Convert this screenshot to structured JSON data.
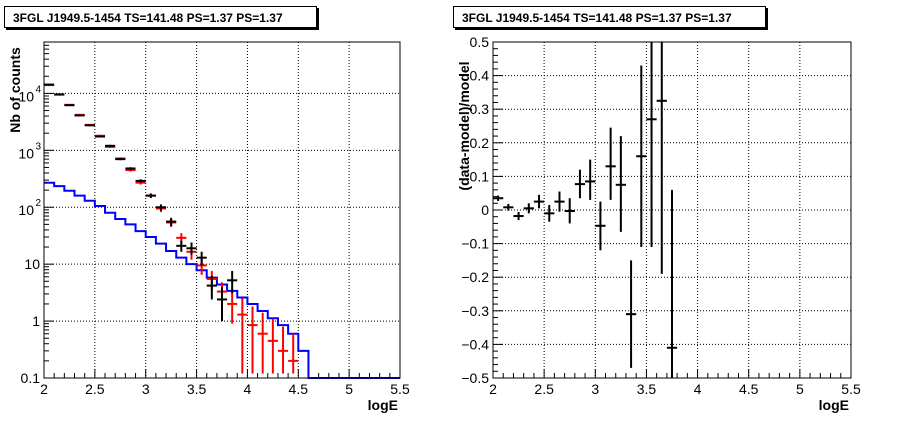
{
  "chart_data": [
    {
      "type": "histogram",
      "title": "3FGL J1949.5-1454 TS=141.48 PS=1.37 PS=1.37",
      "xlabel": "logE",
      "ylabel": "Nb of counts",
      "xlim": [
        2,
        5.5
      ],
      "ylim": [
        0.1,
        80000
      ],
      "yscale": "log",
      "grid": true,
      "x_ticks": [
        "2",
        "2.5",
        "3",
        "3.5",
        "4",
        "4.5",
        "5",
        "5.5"
      ],
      "y_ticks": [
        {
          "label": "1",
          "value": 1
        },
        {
          "label": "10",
          "value": 10
        },
        {
          "label": "0.1",
          "value": 0.1
        }
      ],
      "y_ticks_pow": [
        {
          "base": "10",
          "exp": "2",
          "value": 100
        },
        {
          "base": "10",
          "exp": "3",
          "value": 1000
        },
        {
          "base": "10",
          "exp": "4",
          "value": 10000
        }
      ],
      "series": [
        {
          "color": "#0000ff",
          "style": "step",
          "x_edges": [
            2.0,
            2.1,
            2.2,
            2.3,
            2.4,
            2.5,
            2.6,
            2.7,
            2.8,
            2.9,
            3.0,
            3.1,
            3.2,
            3.3,
            3.4,
            3.5,
            3.6,
            3.7,
            3.8,
            3.9,
            4.0,
            4.1,
            4.2,
            4.3,
            4.4,
            4.5,
            4.6,
            4.7,
            4.8,
            4.9,
            5.0,
            5.1,
            5.2,
            5.3,
            5.4,
            5.5
          ],
          "values": [
            270,
            235,
            195,
            160,
            130,
            105,
            80,
            62,
            50,
            38,
            30,
            23,
            17,
            13,
            10,
            7.8,
            5.8,
            4.4,
            3.4,
            2.6,
            2.0,
            1.5,
            1.12,
            0.85,
            0.6,
            0.3,
            0.1,
            0.1,
            0.1,
            0.1,
            0.1,
            0.1,
            0.1,
            0.1,
            0.1
          ]
        },
        {
          "color": "#ff0000",
          "style": "error",
          "points": [
            {
              "x": 2.05,
              "y": 14000,
              "ylo": 13600,
              "yhi": 14400
            },
            {
              "x": 2.15,
              "y": 9500,
              "ylo": 9250,
              "yhi": 9750
            },
            {
              "x": 2.25,
              "y": 6300,
              "ylo": 6100,
              "yhi": 6500
            },
            {
              "x": 2.35,
              "y": 4200,
              "ylo": 4060,
              "yhi": 4340
            },
            {
              "x": 2.45,
              "y": 2800,
              "ylo": 2700,
              "yhi": 2900
            },
            {
              "x": 2.55,
              "y": 1800,
              "ylo": 1730,
              "yhi": 1870
            },
            {
              "x": 2.65,
              "y": 1150,
              "ylo": 1100,
              "yhi": 1200
            },
            {
              "x": 2.75,
              "y": 720,
              "ylo": 690,
              "yhi": 750
            },
            {
              "x": 2.85,
              "y": 450,
              "ylo": 425,
              "yhi": 475
            },
            {
              "x": 2.95,
              "y": 270,
              "ylo": 250,
              "yhi": 290
            },
            {
              "x": 3.05,
              "y": 160,
              "ylo": 145,
              "yhi": 175
            },
            {
              "x": 3.15,
              "y": 95,
              "ylo": 82,
              "yhi": 108
            },
            {
              "x": 3.25,
              "y": 54,
              "ylo": 45,
              "yhi": 63
            },
            {
              "x": 3.35,
              "y": 29,
              "ylo": 23,
              "yhi": 35
            },
            {
              "x": 3.45,
              "y": 16.5,
              "ylo": 12,
              "yhi": 21
            },
            {
              "x": 3.55,
              "y": 9.5,
              "ylo": 6.5,
              "yhi": 12.5
            },
            {
              "x": 3.65,
              "y": 5.5,
              "ylo": 3.5,
              "yhi": 7.6
            },
            {
              "x": 3.75,
              "y": 3.3,
              "ylo": 1.8,
              "yhi": 4.8
            },
            {
              "x": 3.85,
              "y": 2.0,
              "ylo": 0.9,
              "yhi": 3.2
            },
            {
              "x": 3.95,
              "y": 1.3,
              "ylo": 0.12,
              "yhi": 2.5
            },
            {
              "x": 4.05,
              "y": 0.85,
              "ylo": 0.12,
              "yhi": 1.8
            },
            {
              "x": 4.15,
              "y": 0.6,
              "ylo": 0.12,
              "yhi": 1.4
            },
            {
              "x": 4.25,
              "y": 0.45,
              "ylo": 0.12,
              "yhi": 1.1
            },
            {
              "x": 4.35,
              "y": 0.3,
              "ylo": 0.12,
              "yhi": 0.8
            },
            {
              "x": 4.45,
              "y": 0.2,
              "ylo": 0.12,
              "yhi": 0.6
            }
          ]
        },
        {
          "color": "#000000",
          "style": "error",
          "points": [
            {
              "x": 2.05,
              "y": 14300,
              "ylo": 13900,
              "yhi": 14700
            },
            {
              "x": 2.15,
              "y": 9600,
              "ylo": 9350,
              "yhi": 9850
            },
            {
              "x": 2.25,
              "y": 6200,
              "ylo": 6000,
              "yhi": 6400
            },
            {
              "x": 2.35,
              "y": 4100,
              "ylo": 3970,
              "yhi": 4230
            },
            {
              "x": 2.45,
              "y": 2750,
              "ylo": 2650,
              "yhi": 2850
            },
            {
              "x": 2.55,
              "y": 1750,
              "ylo": 1680,
              "yhi": 1820
            },
            {
              "x": 2.65,
              "y": 1200,
              "ylo": 1150,
              "yhi": 1250
            },
            {
              "x": 2.75,
              "y": 700,
              "ylo": 670,
              "yhi": 730
            },
            {
              "x": 2.85,
              "y": 480,
              "ylo": 455,
              "yhi": 505
            },
            {
              "x": 2.95,
              "y": 290,
              "ylo": 270,
              "yhi": 310
            },
            {
              "x": 3.05,
              "y": 160,
              "ylo": 146,
              "yhi": 174
            },
            {
              "x": 3.15,
              "y": 100,
              "ylo": 88,
              "yhi": 112
            },
            {
              "x": 3.25,
              "y": 56,
              "ylo": 47,
              "yhi": 65
            },
            {
              "x": 3.35,
              "y": 21,
              "ylo": 16.5,
              "yhi": 26
            },
            {
              "x": 3.45,
              "y": 19,
              "ylo": 14.5,
              "yhi": 24
            },
            {
              "x": 3.55,
              "y": 13,
              "ylo": 9.5,
              "yhi": 16.5
            },
            {
              "x": 3.65,
              "y": 4.2,
              "ylo": 2.4,
              "yhi": 6.2
            },
            {
              "x": 3.75,
              "y": 2.4,
              "ylo": 1.0,
              "yhi": 3.9
            },
            {
              "x": 3.85,
              "y": 5.2,
              "ylo": 3.1,
              "yhi": 7.6
            }
          ]
        }
      ]
    },
    {
      "type": "scatter",
      "title": "3FGL J1949.5-1454 TS=141.48 PS=1.37 PS=1.37",
      "xlabel": "logE",
      "ylabel": "(data-model)/model",
      "xlim": [
        2,
        5.5
      ],
      "ylim": [
        -0.5,
        0.5
      ],
      "grid": true,
      "x_ticks": [
        "2",
        "2.5",
        "3",
        "3.5",
        "4",
        "4.5",
        "5",
        "5.5"
      ],
      "y_ticks": [
        "0.5",
        "0.4",
        "0.3",
        "0.2",
        "0.1",
        "0",
        "−0.1",
        "−0.2",
        "−0.3",
        "−0.4",
        "−0.5"
      ],
      "points": [
        {
          "x": 2.05,
          "y": 0.035,
          "ylo": 0.027,
          "yhi": 0.043
        },
        {
          "x": 2.15,
          "y": 0.008,
          "ylo": -0.002,
          "yhi": 0.018
        },
        {
          "x": 2.25,
          "y": -0.018,
          "ylo": -0.03,
          "yhi": -0.006
        },
        {
          "x": 2.35,
          "y": 0.005,
          "ylo": -0.01,
          "yhi": 0.02
        },
        {
          "x": 2.45,
          "y": 0.025,
          "ylo": 0.005,
          "yhi": 0.045
        },
        {
          "x": 2.55,
          "y": -0.01,
          "ylo": -0.035,
          "yhi": 0.015
        },
        {
          "x": 2.65,
          "y": 0.025,
          "ylo": -0.005,
          "yhi": 0.055
        },
        {
          "x": 2.75,
          "y": -0.003,
          "ylo": -0.04,
          "yhi": 0.035
        },
        {
          "x": 2.85,
          "y": 0.077,
          "ylo": 0.035,
          "yhi": 0.12
        },
        {
          "x": 2.95,
          "y": 0.085,
          "ylo": 0.03,
          "yhi": 0.15
        },
        {
          "x": 3.05,
          "y": -0.047,
          "ylo": -0.12,
          "yhi": 0.025
        },
        {
          "x": 3.15,
          "y": 0.13,
          "ylo": 0.03,
          "yhi": 0.245
        },
        {
          "x": 3.25,
          "y": 0.075,
          "ylo": -0.065,
          "yhi": 0.22
        },
        {
          "x": 3.35,
          "y": -0.31,
          "ylo": -0.47,
          "yhi": -0.15
        },
        {
          "x": 3.45,
          "y": 0.16,
          "ylo": -0.11,
          "yhi": 0.43
        },
        {
          "x": 3.55,
          "y": 0.27,
          "ylo": -0.11,
          "yhi": 0.5
        },
        {
          "x": 3.65,
          "y": 0.325,
          "ylo": -0.19,
          "yhi": 0.5
        },
        {
          "x": 3.75,
          "y": -0.41,
          "ylo": -0.5,
          "yhi": 0.06
        }
      ]
    }
  ]
}
